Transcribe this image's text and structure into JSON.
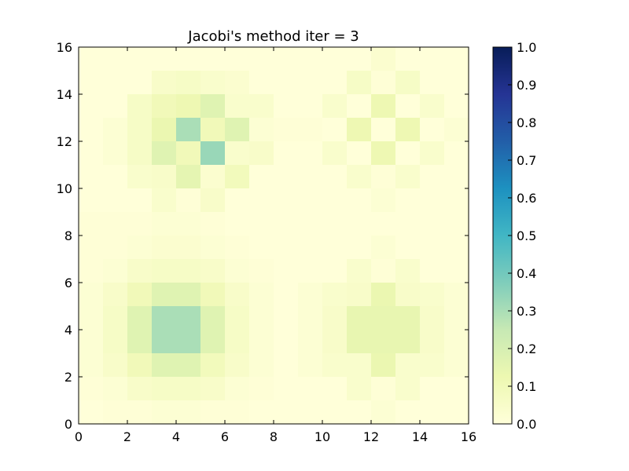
{
  "chart_data": {
    "type": "heatmap",
    "title": "Jacobi's method iter = 3",
    "xlabel": "",
    "ylabel": "",
    "xlim": [
      0,
      16
    ],
    "ylim": [
      0,
      16
    ],
    "x_ticks": [
      "0",
      "2",
      "4",
      "6",
      "8",
      "10",
      "12",
      "14",
      "16"
    ],
    "y_ticks": [
      "0",
      "2",
      "4",
      "6",
      "8",
      "10",
      "12",
      "14",
      "16"
    ],
    "colormap": "YlGnBu",
    "colorbar": {
      "min": 0.0,
      "max": 1.0,
      "ticks": [
        "0.0",
        "0.1",
        "0.2",
        "0.3",
        "0.4",
        "0.5",
        "0.6",
        "0.7",
        "0.8",
        "0.9",
        "1.0"
      ],
      "colors": [
        "#ffffd9",
        "#edf8b1",
        "#c7e9b4",
        "#7fcdbb",
        "#41b6c4",
        "#1d91c0",
        "#225ea8",
        "#253494",
        "#081d58"
      ]
    },
    "grid_rows_top_to_bottom": [
      [
        0.0,
        0.0,
        0.0,
        0.0,
        0.0,
        0.0,
        0.0,
        0.0,
        0.0,
        0.0,
        0.0,
        0.0,
        0.03,
        0.0,
        0.0,
        0.0
      ],
      [
        0.0,
        0.0,
        0.0,
        0.05,
        0.06,
        0.04,
        0.03,
        0.0,
        0.0,
        0.0,
        0.0,
        0.06,
        0.01,
        0.06,
        0.0,
        0.0
      ],
      [
        0.0,
        0.0,
        0.06,
        0.1,
        0.12,
        0.17,
        0.04,
        0.04,
        0.0,
        0.0,
        0.04,
        0.0,
        0.12,
        0.0,
        0.04,
        0.0
      ],
      [
        0.0,
        0.02,
        0.06,
        0.13,
        0.3,
        0.1,
        0.17,
        0.02,
        0.01,
        0.01,
        0.0,
        0.12,
        0.0,
        0.12,
        0.0,
        0.02
      ],
      [
        0.0,
        0.02,
        0.06,
        0.17,
        0.1,
        0.33,
        0.04,
        0.05,
        0.0,
        0.0,
        0.04,
        0.0,
        0.12,
        0.0,
        0.04,
        0.0
      ],
      [
        0.0,
        0.0,
        0.04,
        0.05,
        0.15,
        0.03,
        0.09,
        0.0,
        0.0,
        0.0,
        0.0,
        0.04,
        0.01,
        0.04,
        0.0,
        0.0
      ],
      [
        0.0,
        0.0,
        0.0,
        0.04,
        0.01,
        0.05,
        0.0,
        0.0,
        0.0,
        0.0,
        0.0,
        0.0,
        0.02,
        0.0,
        0.0,
        0.0
      ],
      [
        0.01,
        0.01,
        0.01,
        0.02,
        0.02,
        0.01,
        0.0,
        0.0,
        0.0,
        0.0,
        0.0,
        0.0,
        0.0,
        0.0,
        0.0,
        0.0
      ],
      [
        0.01,
        0.01,
        0.02,
        0.03,
        0.03,
        0.02,
        0.01,
        0.0,
        0.0,
        0.0,
        0.0,
        0.0,
        0.02,
        0.0,
        0.0,
        0.0
      ],
      [
        0.01,
        0.02,
        0.05,
        0.06,
        0.06,
        0.05,
        0.02,
        0.01,
        0.0,
        0.0,
        0.0,
        0.04,
        0.01,
        0.04,
        0.0,
        0.0
      ],
      [
        0.02,
        0.05,
        0.1,
        0.17,
        0.17,
        0.1,
        0.05,
        0.02,
        0.0,
        0.02,
        0.04,
        0.05,
        0.13,
        0.05,
        0.04,
        0.02
      ],
      [
        0.02,
        0.06,
        0.17,
        0.3,
        0.3,
        0.17,
        0.06,
        0.02,
        0.0,
        0.02,
        0.05,
        0.14,
        0.14,
        0.14,
        0.05,
        0.02
      ],
      [
        0.02,
        0.06,
        0.17,
        0.3,
        0.3,
        0.17,
        0.06,
        0.02,
        0.0,
        0.02,
        0.05,
        0.14,
        0.14,
        0.14,
        0.05,
        0.02
      ],
      [
        0.02,
        0.05,
        0.1,
        0.17,
        0.17,
        0.09,
        0.05,
        0.02,
        0.0,
        0.02,
        0.04,
        0.04,
        0.13,
        0.04,
        0.04,
        0.02
      ],
      [
        0.01,
        0.02,
        0.05,
        0.06,
        0.06,
        0.05,
        0.02,
        0.01,
        0.0,
        0.0,
        0.0,
        0.04,
        0.01,
        0.04,
        0.0,
        0.0
      ],
      [
        0.0,
        0.01,
        0.01,
        0.02,
        0.02,
        0.01,
        0.01,
        0.0,
        0.0,
        0.0,
        0.0,
        0.0,
        0.02,
        0.0,
        0.0,
        0.0
      ]
    ]
  }
}
